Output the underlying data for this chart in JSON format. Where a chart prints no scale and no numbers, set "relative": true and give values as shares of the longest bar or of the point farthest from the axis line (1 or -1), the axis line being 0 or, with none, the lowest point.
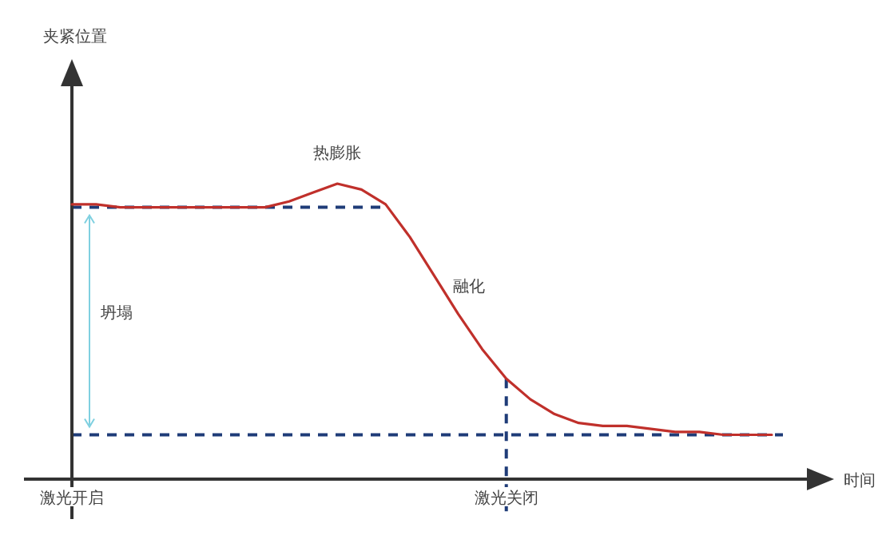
{
  "chart_data": {
    "type": "line",
    "relative": true,
    "xlabel": "时间",
    "line_style": "solid",
    "categories": [
      "激光开启",
      null,
      null,
      null,
      null,
      null,
      null,
      null,
      null,
      null,
      null,
      null,
      null,
      null,
      null,
      null,
      null,
      null,
      "激光关闭",
      null,
      null,
      null,
      null,
      null,
      null,
      null,
      null,
      null,
      null,
      null
    ],
    "series": [
      {
        "color": "#c0302b",
        "values": [
          0.93,
          0.93,
          0.92,
          0.92,
          0.92,
          0.92,
          0.92,
          0.92,
          0.92,
          0.94,
          0.97,
          1.0,
          0.98,
          0.93,
          0.82,
          0.69,
          0.56,
          0.44,
          0.34,
          0.27,
          0.22,
          0.19,
          0.18,
          0.18,
          0.17,
          0.16,
          0.16,
          0.15,
          0.15,
          0.15
        ]
      }
    ],
    "ref_lines": [
      {
        "axis": "y",
        "value": 0.92,
        "color": "#1f3c78",
        "line_style": "dashed"
      },
      {
        "axis": "y",
        "value": 0.15,
        "color": "#1f3c78",
        "line_style": "dashed"
      },
      {
        "axis": "x",
        "value": "激光关闭",
        "color": "#1f3c78",
        "line_style": "dashed"
      }
    ],
    "annotations": [
      "夹紧位置",
      "热膨胀",
      "融化",
      "坍塌"
    ]
  }
}
